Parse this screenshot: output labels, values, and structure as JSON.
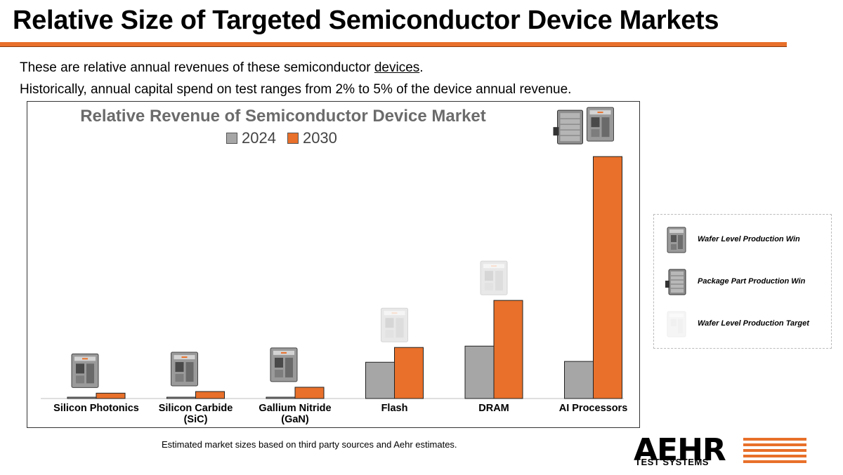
{
  "slide": {
    "title": "Relative Size of Targeted Semiconductor Device Markets",
    "intro_line1_prefix": "These are relative annual revenues of these semiconductor ",
    "intro_line1_underlined": "devices",
    "intro_line1_suffix": ".",
    "intro_line2": "Historically, annual capital spend on test ranges from 2% to 5% of the device annual revenue.",
    "footnote": "Estimated market sizes based on third party sources and Aehr estimates.",
    "accent_color": "#E8702A"
  },
  "chart_data": {
    "type": "bar",
    "title": "Relative Revenue of Semiconductor Device Market",
    "categories": [
      "Silicon Photonics",
      "Silicon Carbide (SiC)",
      "Gallium Nitride (GaN)",
      "Flash",
      "DRAM",
      "AI Processors"
    ],
    "category_label_lines": [
      [
        "Silicon Photonics"
      ],
      [
        "Silicon Carbide",
        "(SiC)"
      ],
      [
        "Gallium Nitride",
        "(GaN)"
      ],
      [
        "Flash"
      ],
      [
        "DRAM"
      ],
      [
        "AI Processors"
      ]
    ],
    "series": [
      {
        "name": "2024",
        "color": "#A6A6A6",
        "values": [
          0.5,
          0.5,
          0.5,
          13.5,
          19.5,
          13.8
        ]
      },
      {
        "name": "2030",
        "color": "#E8702A",
        "values": [
          2,
          2.6,
          4.2,
          19,
          36.5,
          90
        ]
      }
    ],
    "ylim": [
      0,
      95
    ],
    "y_axis_visible": false,
    "grid": false,
    "legend_position": "top-center",
    "category_markers": [
      "wafer-level-production-win",
      "wafer-level-production-win",
      "wafer-level-production-win",
      "wafer-level-production-target",
      "wafer-level-production-target",
      "wafer-and-package-production-win"
    ]
  },
  "key": {
    "items": [
      {
        "label": "Wafer Level Production Win",
        "icon": "wafer-level-system-icon"
      },
      {
        "label": "Package Part Production Win",
        "icon": "package-part-system-icon"
      },
      {
        "label": "Wafer Level Production Target",
        "icon": "wafer-level-target-icon"
      }
    ]
  },
  "logo": {
    "word": "AEHR",
    "sub": "TEST SYSTEMS"
  }
}
